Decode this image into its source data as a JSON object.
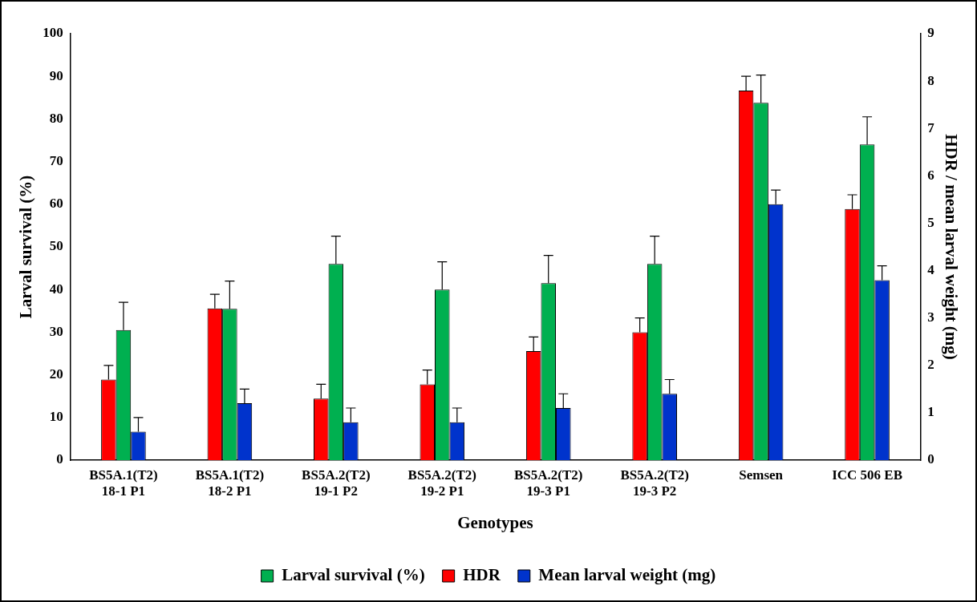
{
  "chart_data": {
    "type": "bar",
    "xlabel": "Genotypes",
    "ylabel": "Larval survival (%)",
    "y2label": "HDR / mean larval weight (mg)",
    "categories": [
      "BS5A.1(T2)\n18-1 P1",
      "BS5A.1(T2)\n18-2 P1",
      "BS5A.2(T2)\n19-1 P2",
      "BS5A.2(T2)\n19-2 P1",
      "BS5A.2(T2)\n19-3 P1",
      "BS5A.2(T2)\n19-3 P2",
      "Semsen",
      "ICC 506 EB"
    ],
    "series": [
      {
        "name": "HDR",
        "color": "#ff0000",
        "axis": "y2",
        "values": [
          1.7,
          3.2,
          1.3,
          1.6,
          2.3,
          2.7,
          7.8,
          5.3
        ],
        "errors": [
          [
            1.7,
            2.0
          ],
          [
            3.2,
            3.5
          ],
          [
            1.3,
            1.6
          ],
          [
            1.6,
            1.9
          ],
          [
            2.3,
            2.6
          ],
          [
            2.7,
            3.0
          ],
          [
            7.8,
            8.1
          ],
          [
            5.3,
            5.6
          ]
        ]
      },
      {
        "name": "Larval survival (%)",
        "color": "#00b050",
        "values": [
          30.5,
          35.5,
          46,
          40,
          41.5,
          46,
          83.8,
          74
        ],
        "errors": [
          [
            30.5,
            37
          ],
          [
            35.5,
            42
          ],
          [
            46,
            52.5
          ],
          [
            40,
            46.5
          ],
          [
            41.5,
            48
          ],
          [
            46,
            52.5
          ],
          [
            83.8,
            90.3
          ],
          [
            74,
            80.5
          ]
        ]
      },
      {
        "name": "Mean larval weight (mg)",
        "color": "#0033cc",
        "axis": "y2",
        "values": [
          0.6,
          1.2,
          0.8,
          0.8,
          1.1,
          1.4,
          5.4,
          3.8
        ],
        "errors": [
          [
            0.6,
            0.9
          ],
          [
            1.2,
            1.5
          ],
          [
            0.8,
            1.1
          ],
          [
            0.8,
            1.1
          ],
          [
            1.1,
            1.4
          ],
          [
            1.4,
            1.7
          ],
          [
            5.4,
            5.7
          ],
          [
            3.8,
            4.1
          ]
        ]
      }
    ],
    "ylim": [
      0,
      100
    ],
    "yticks": [
      0,
      10,
      20,
      30,
      40,
      50,
      60,
      70,
      80,
      90,
      100
    ],
    "y2lim": [
      0,
      9
    ],
    "y2ticks": [
      0,
      1,
      2,
      3,
      4,
      5,
      6,
      7,
      8,
      9
    ],
    "grid": false,
    "legend": "bottom"
  }
}
